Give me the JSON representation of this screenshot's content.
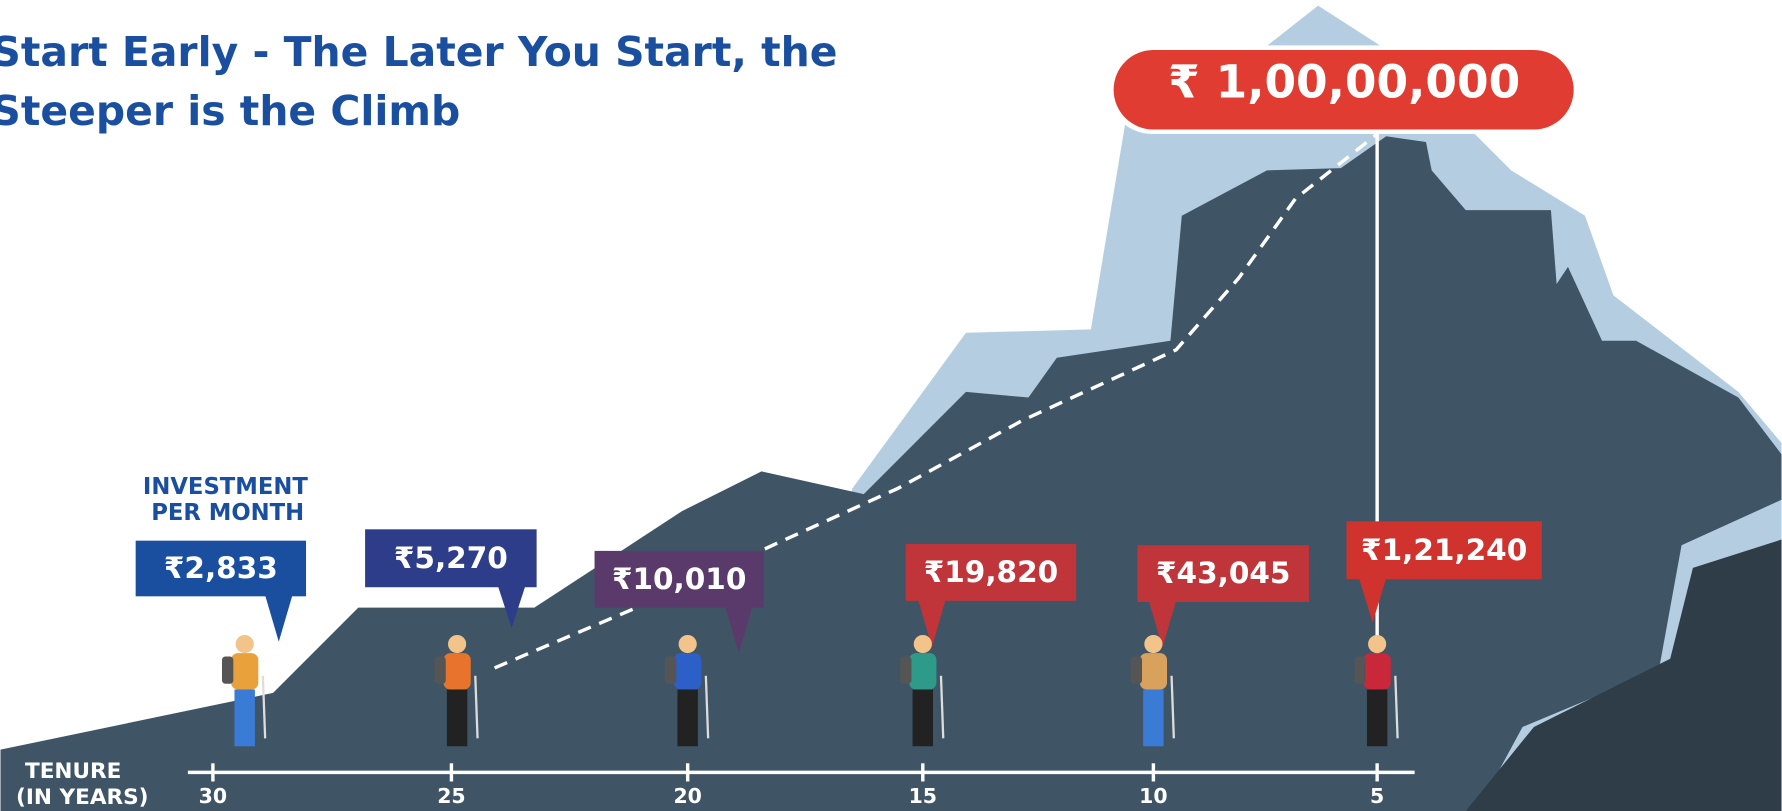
{
  "title": [
    "Start Early - The Later You Start, the",
    "Steeper is the Climb"
  ],
  "target": "₹ 1,00,00,000",
  "investment_label": [
    "INVESTMENT",
    "PER MONTH"
  ],
  "tenure_label": [
    "TENURE",
    "(IN YEARS)"
  ],
  "items": [
    {
      "tenure": 30,
      "amount": "₹2,833"
    },
    {
      "tenure": 25,
      "amount": "₹5,270"
    },
    {
      "tenure": 20,
      "amount": "₹10,010"
    },
    {
      "tenure": 15,
      "amount": "₹19,820"
    },
    {
      "tenure": 10,
      "amount": "₹43,045"
    },
    {
      "tenure": 5,
      "amount": "₹1,21,240"
    }
  ]
}
